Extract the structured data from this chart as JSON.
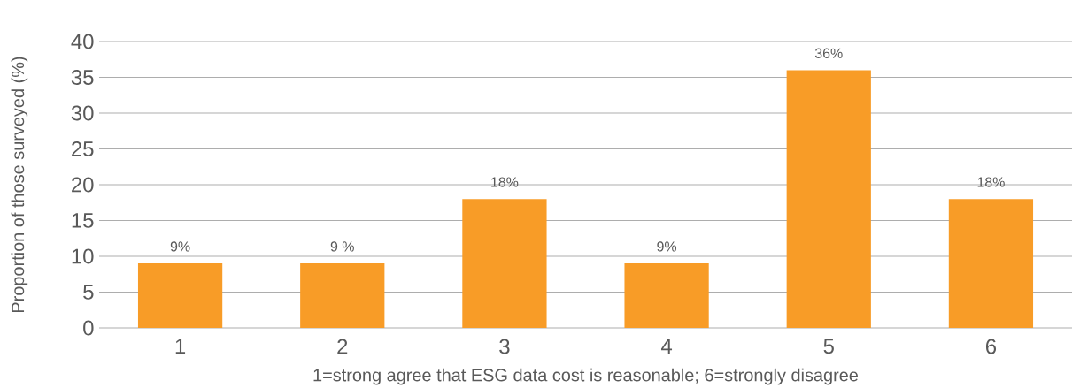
{
  "chart_data": {
    "type": "bar",
    "xlabel": "1=strong agree that ESG data cost is reasonable; 6=strongly disagree",
    "ylabel": "Proportion of those surveyed (%)",
    "categories": [
      "1",
      "2",
      "3",
      "4",
      "5",
      "6"
    ],
    "values": [
      9,
      9,
      18,
      9,
      36,
      18
    ],
    "value_labels": [
      "9%",
      "9 %",
      "18%",
      "9%",
      "36%",
      "18%"
    ],
    "color": "#f89c27",
    "ylim": [
      0,
      40
    ],
    "yticks": [
      0,
      5,
      10,
      15,
      20,
      25,
      30,
      35,
      40
    ],
    "grid": "y"
  }
}
